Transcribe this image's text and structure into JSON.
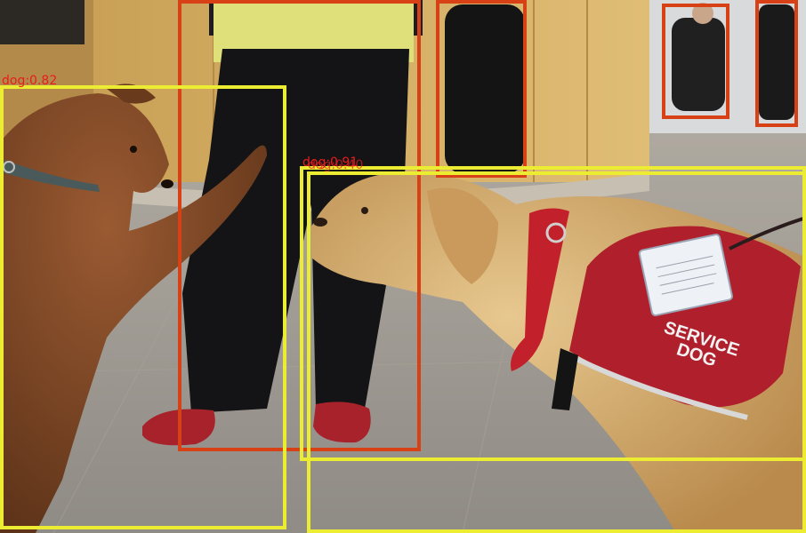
{
  "image": {
    "subject": "Two dogs meeting indoors",
    "vest_text_line1": "SERVICE",
    "vest_text_line2": "DOG"
  },
  "detections": {
    "dog_small_label": "dog:0.82",
    "dog_large_label": "dog:0.91",
    "dog_large_inner_label": "dog:0.40"
  },
  "colors": {
    "person_box": "#d84016",
    "dog_box": "#ecec32",
    "label_text": "#e81c1c"
  }
}
